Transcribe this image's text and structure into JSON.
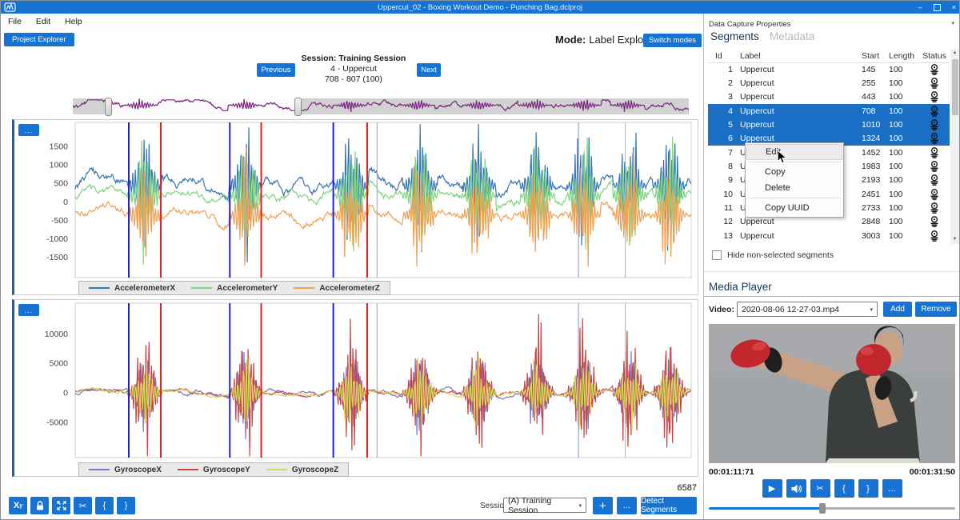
{
  "window": {
    "title": "Uppercut_02 - Boxing Workout Demo - Punching Bag.dclproj"
  },
  "menu": {
    "items": [
      "File",
      "Edit",
      "Help"
    ]
  },
  "header": {
    "project_explorer": "Project Explorer",
    "mode_label": "Mode:",
    "mode_value": "Label Explorer",
    "switch_modes": "Switch modes"
  },
  "session_nav": {
    "previous": "Previous",
    "next": "Next",
    "line1": "Session: Training Session",
    "line2": "4 - Uppercut",
    "line3": "708 - 807 (100)"
  },
  "properties": {
    "title": "Data Capture Properties",
    "tabs": [
      "Segments",
      "Metadata"
    ]
  },
  "segments": {
    "columns": [
      "Id",
      "Label",
      "Start",
      "Length",
      "Status"
    ],
    "selected_ids": [
      4,
      5,
      6
    ],
    "rows": [
      {
        "id": 1,
        "label": "Uppercut",
        "start": 145,
        "length": 100
      },
      {
        "id": 2,
        "label": "Uppercut",
        "start": 255,
        "length": 100
      },
      {
        "id": 3,
        "label": "Uppercut",
        "start": 443,
        "length": 100
      },
      {
        "id": 4,
        "label": "Uppercut",
        "start": 708,
        "length": 100
      },
      {
        "id": 5,
        "label": "Uppercut",
        "start": 1010,
        "length": 100
      },
      {
        "id": 6,
        "label": "Uppercut",
        "start": 1324,
        "length": 100
      },
      {
        "id": 7,
        "label": "Uppercut",
        "start": 1452,
        "length": 100
      },
      {
        "id": 8,
        "label": "Uppercut",
        "start": 1983,
        "length": 100
      },
      {
        "id": 9,
        "label": "Uppercut",
        "start": 2193,
        "length": 100
      },
      {
        "id": 10,
        "label": "Uppercut",
        "start": 2451,
        "length": 100
      },
      {
        "id": 11,
        "label": "Uppercut",
        "start": 2733,
        "length": 100
      },
      {
        "id": 12,
        "label": "Uppercut",
        "start": 2848,
        "length": 100
      },
      {
        "id": 13,
        "label": "Uppercut",
        "start": 3003,
        "length": 100
      }
    ],
    "hide_label": "Hide non-selected segments"
  },
  "context_menu": {
    "items": [
      {
        "label": "Edit",
        "highlight": true
      },
      {
        "sep": true
      },
      {
        "label": "Copy"
      },
      {
        "label": "Delete"
      },
      {
        "sep": true
      },
      {
        "label": "Copy UUID"
      }
    ]
  },
  "media_player": {
    "title": "Media Player",
    "video_label": "Video:",
    "video_value": "2020-08-06 12-27-03.mp4",
    "add": "Add",
    "remove": "Remove",
    "time_left": "00:01:11:71",
    "time_right": "00:01:31:50",
    "progress": 0.46
  },
  "footer": {
    "count": "6587",
    "session_label": "Session:",
    "session_value": "(A) Training Session",
    "detect": "Detect Segments"
  },
  "icons": {
    "play": "▶",
    "scissors": "✂",
    "ellipsis": "...",
    "plus": "+",
    "xy": "X",
    "xy_sub": "y",
    "brace_open": "{",
    "brace_close": "}",
    "minimize": "–",
    "close": "×",
    "caret": "▾",
    "up": "▲",
    "down": "▼"
  },
  "video_scene": {
    "wall": "#a2a5a8",
    "shirt": "#3a3e3d",
    "skin": "#c9a286",
    "glove": "#c1272d",
    "glove_dark": "#1f1f1f",
    "hair": "#2a241f",
    "trim": "#ded9cb"
  },
  "charts": {
    "overview": {
      "n": 900,
      "ylim": [
        -1.7,
        1.7
      ],
      "bg": "#d2d2d2",
      "sel_bg": "#fbfbfb",
      "handle_pos": [
        0.056,
        0.364
      ],
      "bursts": [
        0.11,
        0.28,
        0.45,
        0.56,
        0.66,
        0.75,
        0.83,
        0.9
      ],
      "series": [
        {
          "name": "overview-wave",
          "color": "#7c2482",
          "seed": 7,
          "base": 0.25,
          "amp": 1.05,
          "clip": 1.15,
          "burst": 1.3
        }
      ],
      "ticks": [],
      "lines": []
    },
    "accelerometer": {
      "n": 760,
      "ylim": [
        -2050,
        2150
      ],
      "ticks": [
        1500,
        1000,
        500,
        0,
        -500,
        -1000,
        -1500
      ],
      "bursts": [
        0.113,
        0.277,
        0.448,
        0.56,
        0.655,
        0.75,
        0.825,
        0.9,
        0.965
      ],
      "series": [
        {
          "name": "AccelerometerX",
          "color": "#3476b5",
          "seed": 11,
          "base": 430,
          "amp": 270,
          "clip": 880,
          "burst": 1850
        },
        {
          "name": "AccelerometerY",
          "color": "#7fd47f",
          "seed": 22,
          "base": 170,
          "amp": 230,
          "clip": 760,
          "burst": 1800
        },
        {
          "name": "AccelerometerZ",
          "color": "#f0a152",
          "seed": 33,
          "base": -360,
          "amp": 240,
          "clip": 760,
          "burst": 1650
        }
      ],
      "lines": [
        {
          "p": 0.087,
          "color": "#2222cc",
          "w": 2
        },
        {
          "p": 0.139,
          "color": "#dd2222",
          "w": 2
        },
        {
          "p": 0.251,
          "color": "#2222cc",
          "w": 2
        },
        {
          "p": 0.302,
          "color": "#dd2222",
          "w": 2
        },
        {
          "p": 0.419,
          "color": "#2222cc",
          "w": 2
        },
        {
          "p": 0.474,
          "color": "#dd2222",
          "w": 2
        },
        {
          "p": 0.49,
          "color": "#9b9bdd",
          "w": 1
        },
        {
          "p": 0.817,
          "color": "#8b8bdd",
          "w": 1
        },
        {
          "p": 0.893,
          "color": "#ee9999",
          "w": 1
        }
      ]
    },
    "gyroscope": {
      "n": 760,
      "ylim": [
        -11000,
        15200
      ],
      "ticks": [
        10000,
        5000,
        0,
        -5000
      ],
      "bursts": [
        0.113,
        0.277,
        0.448,
        0.56,
        0.655,
        0.75,
        0.825,
        0.9,
        0.965
      ],
      "series": [
        {
          "name": "GyroscopeX",
          "color": "#8274c9",
          "seed": 44,
          "base": 0,
          "amp": 650,
          "clip": 1700,
          "burst": 8200
        },
        {
          "name": "GyroscopeY",
          "color": "#c94444",
          "seed": 55,
          "base": 0,
          "amp": 560,
          "clip": 1500,
          "burst": 12600
        },
        {
          "name": "GyroscopeZ",
          "color": "#d4d95c",
          "seed": 66,
          "base": 0,
          "amp": 520,
          "clip": 1300,
          "burst": 6800
        }
      ],
      "lines": [
        {
          "p": 0.087,
          "color": "#2222cc",
          "w": 2
        },
        {
          "p": 0.139,
          "color": "#dd2222",
          "w": 2
        },
        {
          "p": 0.251,
          "color": "#2222cc",
          "w": 2
        },
        {
          "p": 0.302,
          "color": "#dd2222",
          "w": 2
        },
        {
          "p": 0.419,
          "color": "#2222cc",
          "w": 2
        },
        {
          "p": 0.474,
          "color": "#dd2222",
          "w": 2
        },
        {
          "p": 0.49,
          "color": "#9b9bdd",
          "w": 1
        },
        {
          "p": 0.817,
          "color": "#8b8bdd",
          "w": 1
        },
        {
          "p": 0.893,
          "color": "#ee9999",
          "w": 1
        }
      ]
    }
  }
}
